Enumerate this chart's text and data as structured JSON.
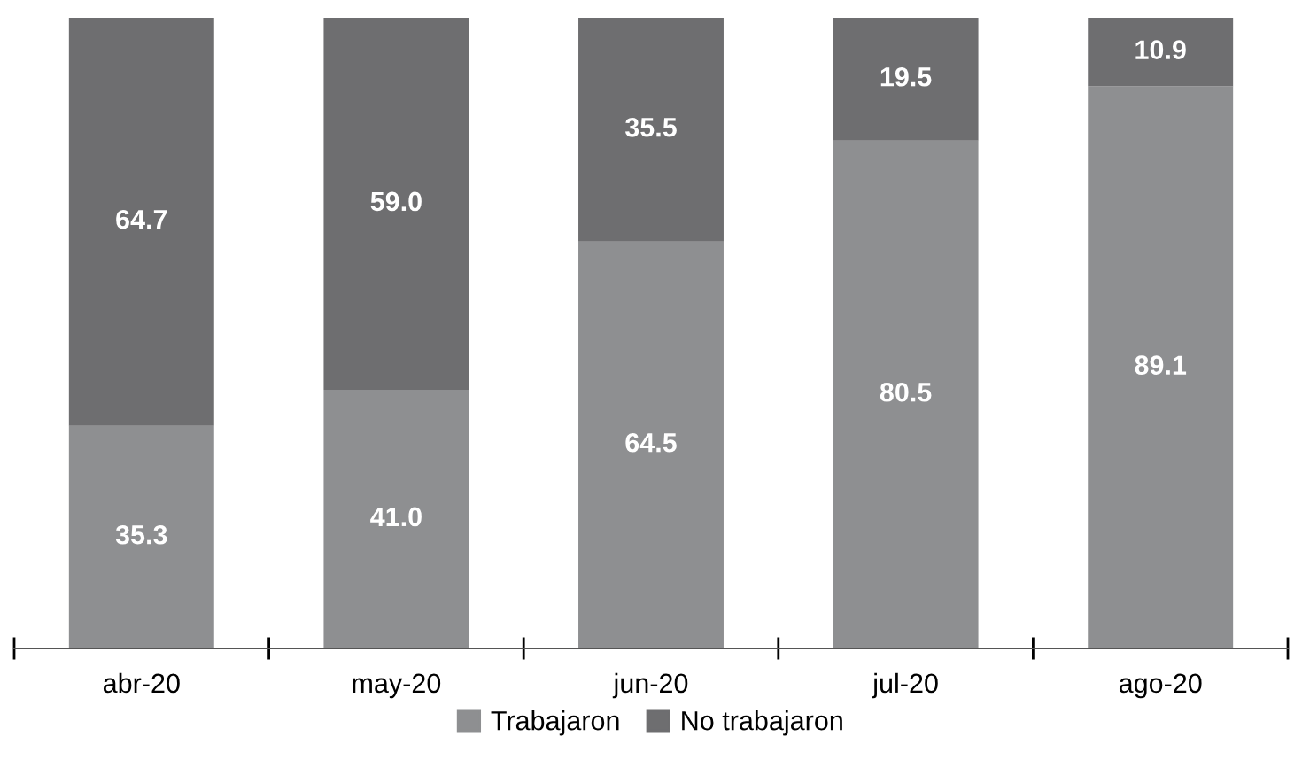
{
  "chart_data": {
    "type": "bar",
    "stacked": true,
    "categories": [
      "abr-20",
      "may-20",
      "jun-20",
      "jul-20",
      "ago-20"
    ],
    "series": [
      {
        "name": "Trabajaron",
        "color": "#8e8f91",
        "values": [
          35.3,
          41.0,
          64.5,
          80.5,
          89.1
        ],
        "value_labels": [
          "35.3",
          "41.0",
          "64.5",
          "80.5",
          "89.1"
        ]
      },
      {
        "name": "No trabajaron",
        "color": "#6e6e70",
        "values": [
          64.7,
          59.0,
          35.5,
          19.5,
          10.9
        ],
        "value_labels": [
          "64.7",
          "59.0",
          "35.5",
          "19.5",
          "10.9"
        ]
      }
    ],
    "legend": "bottom",
    "grid": false
  }
}
